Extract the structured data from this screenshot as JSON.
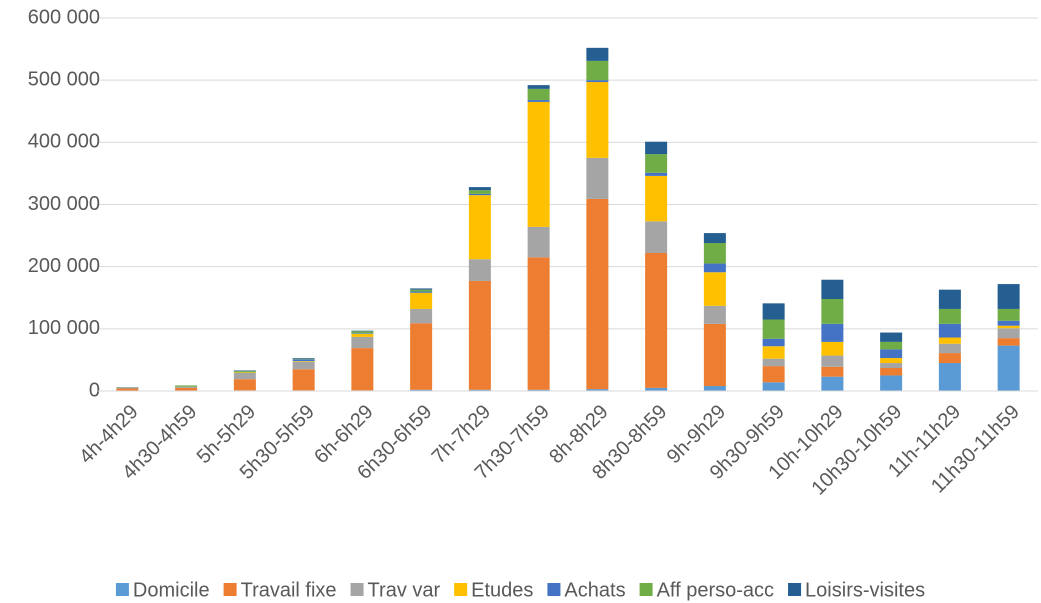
{
  "chart_data": {
    "type": "stacked_bar",
    "categories": [
      "4h-4h29",
      "4h30-4h59",
      "5h-5h29",
      "5h30-5h59",
      "6h-6h29",
      "6h30-6h59",
      "7h-7h29",
      "7h30-7h59",
      "8h-8h29",
      "8h30-8h59",
      "9h-9h29",
      "9h30-9h59",
      "10h-10h29",
      "10h30-10h59",
      "11h-11h29",
      "11h30-11h59"
    ],
    "series": [
      {
        "name": "Domicile",
        "color": "#5b9bd5",
        "values": [
          0,
          0,
          1000,
          1000,
          1000,
          2000,
          2000,
          2000,
          3000,
          5000,
          8000,
          14000,
          23000,
          25000,
          45000,
          73000
        ]
      },
      {
        "name": "Travail fixe",
        "color": "#ed7d31",
        "values": [
          4000,
          5000,
          18000,
          34000,
          68000,
          107000,
          175000,
          213000,
          306000,
          217000,
          100000,
          26000,
          16000,
          12000,
          16000,
          12000
        ]
      },
      {
        "name": "Trav var",
        "color": "#a5a5a5",
        "values": [
          1000,
          2000,
          10000,
          12000,
          18000,
          23000,
          35000,
          49000,
          66000,
          51000,
          29000,
          12000,
          18000,
          8000,
          15000,
          16000
        ]
      },
      {
        "name": "Etudes",
        "color": "#ffc000",
        "values": [
          0,
          0,
          1000,
          1000,
          5000,
          26000,
          103000,
          201000,
          122000,
          73000,
          54000,
          20000,
          22000,
          8000,
          10000,
          4000
        ]
      },
      {
        "name": "Achats",
        "color": "#4472c4",
        "values": [
          0,
          0,
          0,
          3000,
          1000,
          2000,
          2000,
          3000,
          3000,
          5000,
          14000,
          12000,
          29000,
          14000,
          22000,
          8000
        ]
      },
      {
        "name": "Aff perso-acc",
        "color": "#70ad47",
        "values": [
          500,
          2000,
          2000,
          1000,
          3000,
          3000,
          6000,
          18000,
          31000,
          30000,
          33000,
          31000,
          40000,
          12000,
          24000,
          19000
        ]
      },
      {
        "name": "Loisirs-visites",
        "color": "#255e91",
        "values": [
          500,
          0,
          1000,
          1000,
          1000,
          2000,
          5000,
          6000,
          21000,
          20000,
          16000,
          26000,
          31000,
          15000,
          31000,
          40000
        ]
      }
    ],
    "ylim": [
      0,
      600000
    ],
    "yticks": [
      0,
      {
        "value": 100000,
        "label": "100 000"
      },
      {
        "value": 200000,
        "label": "200 000"
      },
      {
        "value": 300000,
        "label": "300 000"
      },
      {
        "value": 400000,
        "label": "400 000"
      },
      {
        "value": 500000,
        "label": "500 000"
      },
      {
        "value": 600000,
        "label": "600 000"
      }
    ],
    "grid": true,
    "legend": "bottom"
  }
}
